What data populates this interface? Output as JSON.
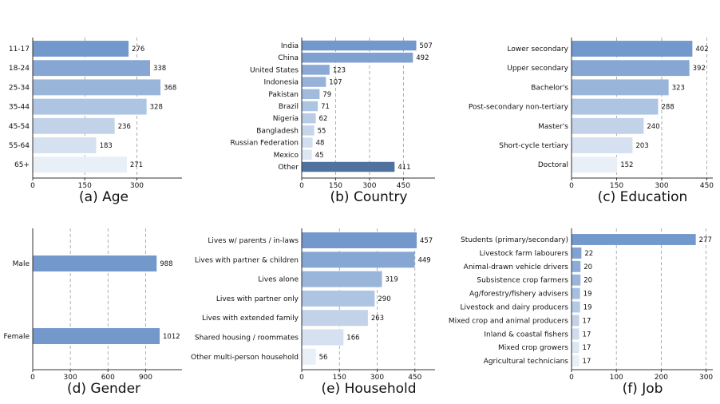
{
  "chart_data": [
    {
      "type": "bar",
      "orientation": "horizontal",
      "title": "(a) Age",
      "categories": [
        "11-17",
        "18-24",
        "25-34",
        "35-44",
        "45-54",
        "55-64",
        "65+"
      ],
      "values": [
        276,
        338,
        368,
        328,
        236,
        183,
        271
      ],
      "xlim": [
        0,
        430
      ],
      "xticks": [
        0,
        150,
        300
      ],
      "grid": true
    },
    {
      "type": "bar",
      "orientation": "horizontal",
      "title": "(b) Country",
      "categories": [
        "India",
        "China",
        "United States",
        "Indonesia",
        "Pakistan",
        "Brazil",
        "Nigeria",
        "Bangladesh",
        "Russian Federation",
        "Mexico",
        "Other"
      ],
      "values": [
        507,
        492,
        123,
        107,
        79,
        71,
        62,
        55,
        48,
        45,
        411
      ],
      "xlim": [
        0,
        590
      ],
      "xticks": [
        0,
        150,
        300,
        450
      ],
      "grid": true
    },
    {
      "type": "bar",
      "orientation": "horizontal",
      "title": "(c) Education",
      "categories": [
        "Lower secondary",
        "Upper secondary",
        "Bachelor's",
        "Post-secondary non-tertiary",
        "Master's",
        "Short-cycle tertiary",
        "Doctoral"
      ],
      "values": [
        402,
        392,
        323,
        288,
        240,
        203,
        152
      ],
      "xlim": [
        0,
        470
      ],
      "xticks": [
        0,
        150,
        300,
        450
      ],
      "grid": true
    },
    {
      "type": "bar",
      "orientation": "horizontal",
      "title": "(d) Gender",
      "categories": [
        "Male",
        "Female"
      ],
      "values": [
        988,
        1012
      ],
      "xlim": [
        0,
        1190
      ],
      "xticks": [
        0,
        300,
        600,
        900
      ],
      "grid": true
    },
    {
      "type": "bar",
      "orientation": "horizontal",
      "title": "(e) Household",
      "categories": [
        "Lives w/ parents / in-laws",
        "Lives with partner & children",
        "Lives alone",
        "Lives with partner only",
        "Lives with extended family",
        "Shared housing / roommates",
        "Other multi-person household"
      ],
      "values": [
        457,
        449,
        319,
        290,
        263,
        166,
        56
      ],
      "xlim": [
        0,
        530
      ],
      "xticks": [
        0,
        150,
        300,
        450
      ],
      "grid": true
    },
    {
      "type": "bar",
      "orientation": "horizontal",
      "title": "(f) Job",
      "categories": [
        "Students (primary/secondary)",
        "Livestock farm labourers",
        "Animal-drawn vehicle drivers",
        "Subsistence crop farmers",
        "Ag/forestry/fishery advisers",
        "Livestock and dairy producers",
        "Mixed crop and animal producers",
        "Inland & coastal fishers",
        "Mixed crop growers",
        "Agricultural technicians"
      ],
      "values": [
        277,
        22,
        20,
        20,
        19,
        19,
        17,
        17,
        17,
        17
      ],
      "xlim": [
        0,
        315
      ],
      "xticks": [
        0,
        100,
        200,
        300
      ],
      "grid": true
    }
  ],
  "colors": {
    "bar_gradient_dark": "#7298cc",
    "bar_gradient_light": "#f3f7fb",
    "other_bar": "#4f739e",
    "grid": "#9a9a9a",
    "axis": "#333333"
  }
}
